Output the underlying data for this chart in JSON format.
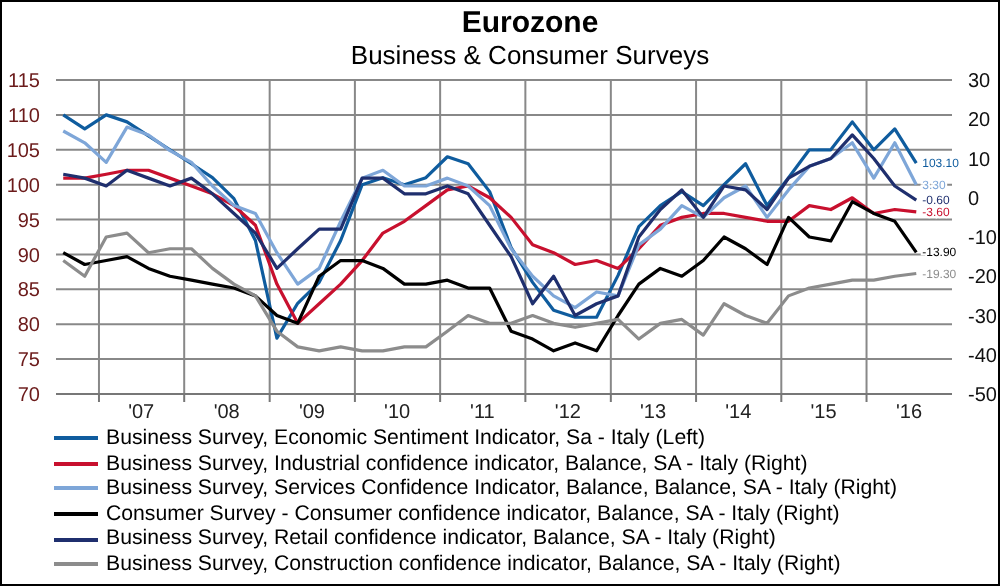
{
  "chart_data": {
    "type": "line",
    "title": "Eurozone",
    "subtitle": "Business & Consumer Surveys",
    "x": [
      "2006-08",
      "2006-11",
      "2007-02",
      "2007-05",
      "2007-08",
      "2007-11",
      "2008-02",
      "2008-05",
      "2008-08",
      "2008-11",
      "2009-02",
      "2009-05",
      "2009-08",
      "2009-11",
      "2010-02",
      "2010-05",
      "2010-08",
      "2010-11",
      "2011-02",
      "2011-05",
      "2011-08",
      "2011-11",
      "2012-02",
      "2012-05",
      "2012-08",
      "2012-11",
      "2013-02",
      "2013-05",
      "2013-08",
      "2013-11",
      "2014-02",
      "2014-05",
      "2014-08",
      "2014-11",
      "2015-02",
      "2015-05",
      "2015-08",
      "2015-11",
      "2016-02",
      "2016-05",
      "2016-08"
    ],
    "series": [
      {
        "name": "Business Survey, Economic Sentiment Indicator, Sa - Italy  (Left)",
        "color": "#0f5c9e",
        "values": [
          110,
          108,
          110,
          109,
          107,
          105,
          103,
          101,
          98,
          92,
          78,
          83,
          86,
          92,
          100,
          101,
          100,
          101,
          104,
          103,
          99,
          91,
          86,
          82,
          81,
          81,
          87,
          94,
          97,
          99,
          97,
          100,
          103,
          97,
          101,
          105,
          105,
          109,
          105,
          108,
          103.1
        ],
        "value_labels": [
          null,
          null,
          null,
          null,
          null,
          null,
          null,
          null,
          null,
          null,
          null,
          null,
          null,
          null,
          null,
          null,
          null,
          null,
          null,
          null,
          null,
          null,
          null,
          null,
          null,
          null,
          null,
          null,
          null,
          null,
          null,
          null,
          null,
          null,
          null,
          null,
          null,
          null,
          null,
          null,
          "103.10"
        ]
      },
      {
        "name": "Business Survey, Industrial confidence indicator, Balance, SA - Italy  (Right)",
        "color": "#c8102e",
        "axis": "y2",
        "values": [
          5,
          5,
          6,
          7,
          7,
          5,
          3,
          1,
          -2,
          -7,
          -22,
          -32,
          -27,
          -22,
          -16,
          -9,
          -6,
          -2,
          2,
          3,
          0,
          -5,
          -12,
          -14,
          -17,
          -16,
          -18,
          -13,
          -7,
          -5,
          -4,
          -4,
          -5,
          -6,
          -6,
          -2,
          -3,
          0,
          -4,
          -3,
          -3.6
        ],
        "value_labels": [
          null,
          null,
          null,
          null,
          null,
          null,
          null,
          null,
          null,
          null,
          null,
          null,
          null,
          null,
          null,
          null,
          null,
          null,
          null,
          null,
          null,
          null,
          null,
          null,
          null,
          null,
          null,
          null,
          null,
          null,
          null,
          null,
          null,
          null,
          null,
          null,
          null,
          null,
          null,
          null,
          "-3.60"
        ]
      },
      {
        "name": "Business Survey, Services Confidence Indicator, Balance, Balance, SA - Italy  (Right)",
        "color": "#7ea6d8",
        "axis": "y2",
        "values": [
          17,
          14,
          9,
          18,
          16,
          12,
          9,
          3,
          -2,
          -4,
          -14,
          -22,
          -18,
          -6,
          5,
          7,
          3,
          3,
          5,
          3,
          -2,
          -13,
          -20,
          -25,
          -28,
          -24,
          -25,
          -12,
          -8,
          -2,
          -5,
          0,
          3,
          -5,
          2,
          8,
          10,
          14,
          5,
          14,
          3.3
        ],
        "value_labels": [
          null,
          null,
          null,
          null,
          null,
          null,
          null,
          null,
          null,
          null,
          null,
          null,
          null,
          null,
          null,
          null,
          null,
          null,
          null,
          null,
          null,
          null,
          null,
          null,
          null,
          null,
          null,
          null,
          null,
          null,
          null,
          null,
          null,
          null,
          null,
          null,
          null,
          null,
          null,
          null,
          "3.30"
        ]
      },
      {
        "name": "Consumer Survey - Consumer confidence indicator, Balance, SA - Italy  (Right)",
        "color": "#000000",
        "axis": "y2",
        "values": [
          -14,
          -17,
          -16,
          -15,
          -18,
          -20,
          -21,
          -22,
          -23,
          -25,
          -30,
          -32,
          -20,
          -16,
          -16,
          -18,
          -22,
          -22,
          -21,
          -23,
          -23,
          -34,
          -36,
          -39,
          -37,
          -39,
          -30,
          -22,
          -18,
          -20,
          -16,
          -10,
          -13,
          -17,
          -5,
          -10,
          -11,
          -1,
          -4,
          -6,
          -13.9
        ],
        "value_labels": [
          null,
          null,
          null,
          null,
          null,
          null,
          null,
          null,
          null,
          null,
          null,
          null,
          null,
          null,
          null,
          null,
          null,
          null,
          null,
          null,
          null,
          null,
          null,
          null,
          null,
          null,
          null,
          null,
          null,
          null,
          null,
          null,
          null,
          null,
          null,
          null,
          null,
          null,
          null,
          null,
          "-13.90"
        ]
      },
      {
        "name": "Business Survey, Retail confidence indicator, Balance, SA - Italy  (Right)",
        "color": "#1f2f6e",
        "axis": "y2",
        "values": [
          6,
          5,
          3,
          7,
          5,
          3,
          5,
          1,
          -4,
          -9,
          -18,
          -13,
          -8,
          -8,
          5,
          5,
          1,
          1,
          3,
          1,
          -7,
          -15,
          -27,
          -20,
          -30,
          -27,
          -25,
          -10,
          -3,
          2,
          -5,
          3,
          2,
          -3,
          5,
          8,
          10,
          16,
          10,
          3,
          -0.6
        ],
        "value_labels": [
          null,
          null,
          null,
          null,
          null,
          null,
          null,
          null,
          null,
          null,
          null,
          null,
          null,
          null,
          null,
          null,
          null,
          null,
          null,
          null,
          null,
          null,
          null,
          null,
          null,
          null,
          null,
          null,
          null,
          null,
          null,
          null,
          null,
          null,
          null,
          null,
          null,
          null,
          null,
          null,
          "-0.60"
        ]
      },
      {
        "name": "Business Survey, Construction confidence indicator, Balance, SA - Italy  (Right)",
        "color": "#8c8c8c",
        "axis": "y2",
        "values": [
          -16,
          -20,
          -10,
          -9,
          -14,
          -13,
          -13,
          -18,
          -22,
          -25,
          -34,
          -38,
          -39,
          -38,
          -39,
          -39,
          -38,
          -38,
          -34,
          -30,
          -32,
          -32,
          -30,
          -32,
          -33,
          -32,
          -31,
          -36,
          -32,
          -31,
          -35,
          -27,
          -30,
          -32,
          -25,
          -23,
          -22,
          -21,
          -21,
          -20,
          -19.3
        ],
        "value_labels": [
          null,
          null,
          null,
          null,
          null,
          null,
          null,
          null,
          null,
          null,
          null,
          null,
          null,
          null,
          null,
          null,
          null,
          null,
          null,
          null,
          null,
          null,
          null,
          null,
          null,
          null,
          null,
          null,
          null,
          null,
          null,
          null,
          null,
          null,
          null,
          null,
          null,
          null,
          null,
          null,
          "-19.30"
        ]
      }
    ],
    "xlim": [
      "2006-07",
      "2017-01"
    ],
    "xticks": [
      {
        "value": "2007-01",
        "label": null
      },
      {
        "value": "2007-07",
        "label": "'07"
      },
      {
        "value": "2008-01",
        "label": null
      },
      {
        "value": "2008-07",
        "label": "'08"
      },
      {
        "value": "2009-01",
        "label": null
      },
      {
        "value": "2009-07",
        "label": "'09"
      },
      {
        "value": "2010-01",
        "label": null
      },
      {
        "value": "2010-07",
        "label": "'10"
      },
      {
        "value": "2011-01",
        "label": null
      },
      {
        "value": "2011-07",
        "label": "'11"
      },
      {
        "value": "2012-01",
        "label": null
      },
      {
        "value": "2012-07",
        "label": "'12"
      },
      {
        "value": "2013-01",
        "label": null
      },
      {
        "value": "2013-07",
        "label": "'13"
      },
      {
        "value": "2014-01",
        "label": null
      },
      {
        "value": "2014-07",
        "label": "'14"
      },
      {
        "value": "2015-01",
        "label": null
      },
      {
        "value": "2015-07",
        "label": "'15"
      },
      {
        "value": "2016-01",
        "label": null
      },
      {
        "value": "2016-07",
        "label": "'16"
      }
    ],
    "ylim": [
      70,
      115
    ],
    "yticks": [
      70,
      75,
      80,
      85,
      90,
      95,
      100,
      105,
      110,
      115
    ],
    "y2lim": [
      -50,
      30
    ],
    "y2ticks": [
      -50,
      -40,
      -30,
      -20,
      -10,
      0,
      10,
      20,
      30
    ],
    "grid": true,
    "legend": "bottom",
    "marker": "none"
  }
}
